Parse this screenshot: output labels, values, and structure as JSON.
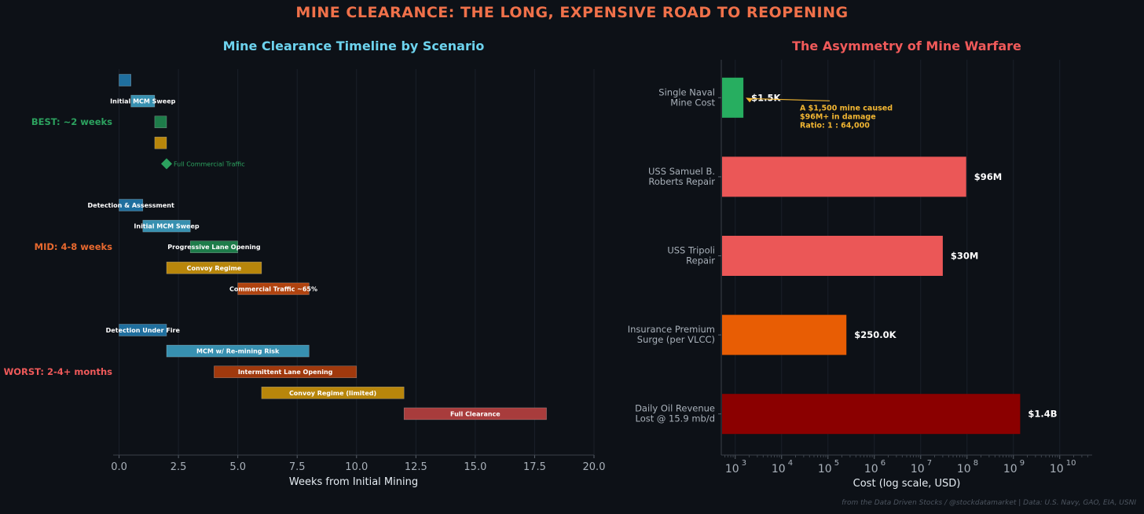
{
  "main_title": "MINE CLEARANCE: THE LONG, EXPENSIVE ROAD TO REOPENING",
  "footer": "from the Data Driven Stocks / @stockdatamarket  |  Data: U.S. Navy, GAO, EIA, USNI",
  "colors": {
    "background": "#0d1117",
    "main_title": "#f0714a",
    "left_title": "#6dd3ee",
    "right_title": "#f05a5a",
    "best": "#2ca25f",
    "mid": "#e8692f",
    "worst": "#f05a5a",
    "annotation": "#f2b632"
  },
  "chart_data": [
    {
      "type": "gantt",
      "title": "Mine Clearance Timeline by Scenario",
      "xlabel": "Weeks from Initial Mining",
      "xlim": [
        -0.25,
        20
      ],
      "xticks": [
        0,
        2.5,
        5,
        7.5,
        10,
        12.5,
        15,
        17.5,
        20
      ],
      "xtick_labels": [
        "0.0",
        "2.5",
        "5.0",
        "7.5",
        "10.0",
        "12.5",
        "15.0",
        "17.5",
        "20.0"
      ],
      "scenarios": [
        {
          "name": "BEST: ~2 weeks",
          "color": "#2ca25f",
          "tasks": [
            {
              "label": "",
              "start": 0,
              "end": 0.5,
              "color": "#1f6f9e"
            },
            {
              "label": "Initial MCM Sweep",
              "start": 0.5,
              "end": 1.5,
              "color": "#3790b0"
            },
            {
              "label": "",
              "start": 1.5,
              "end": 2.0,
              "color": "#1e7c4a"
            },
            {
              "label": "",
              "start": 1.5,
              "end": 2.0,
              "color": "#b8860b"
            },
            {
              "label": "Full Commercial Traffic",
              "start": 2.0,
              "end": 2.0,
              "milestone": true,
              "color": "#2ca25f"
            }
          ]
        },
        {
          "name": "MID: 4-8 weeks",
          "color": "#e8692f",
          "tasks": [
            {
              "label": "Detection & Assessment",
              "start": 0,
              "end": 1,
              "color": "#1f6f9e"
            },
            {
              "label": "Initial MCM Sweep",
              "start": 1,
              "end": 3,
              "color": "#3790b0"
            },
            {
              "label": "Progressive Lane Opening",
              "start": 3,
              "end": 5,
              "color": "#1e7c4a"
            },
            {
              "label": "Convoy Regime",
              "start": 2,
              "end": 6,
              "color": "#b8860b"
            },
            {
              "label": "Commercial Traffic ~65%",
              "start": 5,
              "end": 8,
              "color": "#b0430f"
            }
          ]
        },
        {
          "name": "WORST: 2-4+ months",
          "color": "#f05a5a",
          "tasks": [
            {
              "label": "Detection Under Fire",
              "start": 0,
              "end": 2,
              "color": "#1f6f9e"
            },
            {
              "label": "MCM w/ Re-mining Risk",
              "start": 2,
              "end": 8,
              "color": "#3790b0"
            },
            {
              "label": "Intermittent Lane Opening",
              "start": 4,
              "end": 10,
              "color": "#a0390d"
            },
            {
              "label": "Convoy Regime (limited)",
              "start": 6,
              "end": 12,
              "color": "#b8860b"
            },
            {
              "label": "Full Clearance",
              "start": 12,
              "end": 18,
              "color": "#a83c3c"
            }
          ]
        }
      ]
    },
    {
      "type": "bar",
      "orientation": "horizontal",
      "title": "The Asymmetry of Mine Warfare",
      "xlabel": "Cost (log scale, USD)",
      "xscale": "log",
      "xlim": [
        500,
        50000000000
      ],
      "xticks": [
        1000,
        10000,
        100000,
        1000000,
        10000000,
        100000000,
        1000000000,
        10000000000
      ],
      "xtick_bases": [
        "10",
        "10",
        "10",
        "10",
        "10",
        "10",
        "10",
        "10"
      ],
      "xtick_exponents": [
        "3",
        "4",
        "5",
        "6",
        "7",
        "8",
        "9",
        "10"
      ],
      "categories": [
        [
          "Single Naval",
          "Mine Cost"
        ],
        [
          "USS Samuel B.",
          "Roberts Repair"
        ],
        [
          "USS Tripoli",
          "Repair"
        ],
        [
          "Insurance Premium",
          "Surge (per VLCC)"
        ],
        [
          "Daily Oil Revenue",
          "Lost @ 15.9 mb/d"
        ]
      ],
      "values": [
        1500,
        96000000,
        30000000,
        250000,
        1400000000
      ],
      "value_labels": [
        "$1.5K",
        "$96M",
        "$30M",
        "$250.0K",
        "$1.4B"
      ],
      "bar_colors": [
        "#27ae60",
        "#eb5757",
        "#eb5757",
        "#e85d04",
        "#8b0000"
      ],
      "annotation": {
        "lines": [
          "A $1,500 mine caused",
          "$96M+ in damage",
          "Ratio: 1 : 64,000"
        ],
        "points_to": "Single Naval Mine Cost",
        "text_anchor_value": 50000,
        "text_anchor_category_position": 0.55
      }
    }
  ]
}
